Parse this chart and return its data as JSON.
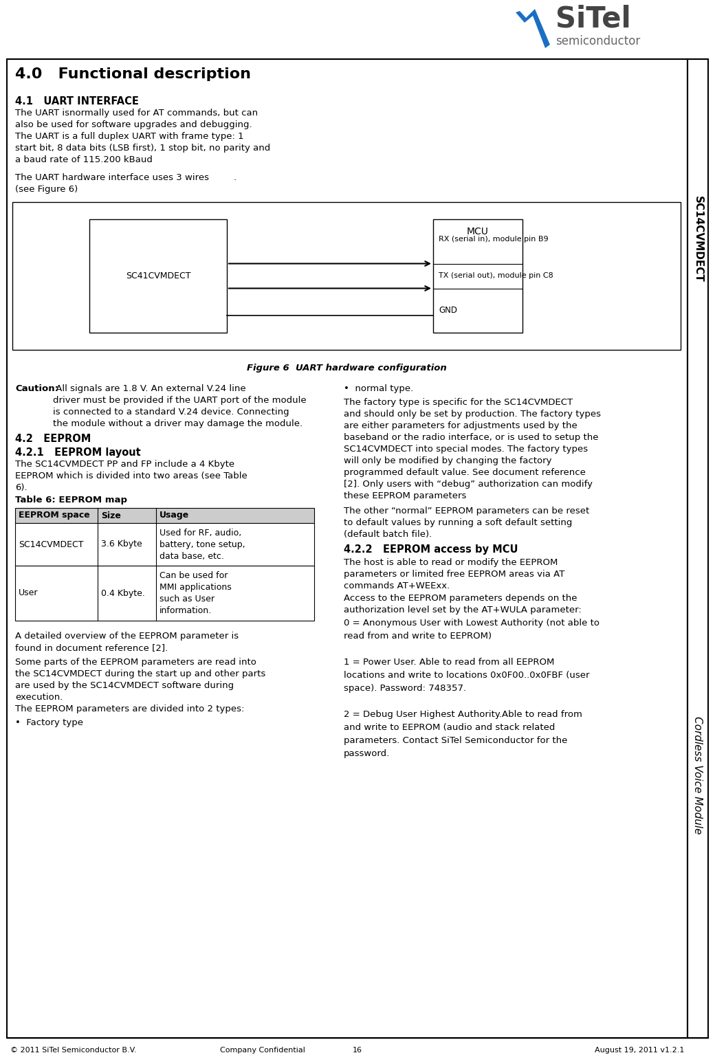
{
  "page_bg": "#ffffff",
  "title_main": "4.0   Functional description",
  "section_41_title": "4.1   UART INTERFACE",
  "section_41_text1": "The UART isnormally used for AT commands, but can\nalso be used for software upgrades and debugging.\nThe UART is a full duplex UART with frame type: 1\nstart bit, 8 data bits (LSB first), 1 stop bit, no parity and\na baud rate of 115.200 kBaud",
  "section_41_text2": "The UART hardware interface uses 3 wires\n(see Figure 6)",
  "figure6_caption": "Figure 6  UART hardware configuration",
  "caution_bold": "Caution:",
  "caution_rest": " All signals are 1.8 V. An external V.24 line\ndriver must be provided if the UART port of the module\nis connected to a standard V.24 device. Connecting\nthe module without a driver may damage the module.",
  "section_42_title": "4.2   EEPROM",
  "section_421_title": "4.2.1   EEPROM layout",
  "section_421_text1": "The SC14CVMDECT PP and FP include a 4 Kbyte\nEEPROM which is divided into two areas (see Table\n6).",
  "table6_title": "Table 6: EEPROM map",
  "table6_headers": [
    "EEPROM space",
    "Size",
    "Usage"
  ],
  "table6_row1_col0": "SC14CVMDECT",
  "table6_row1_col1": "3.6 Kbyte",
  "table6_row1_col2": "Used for RF, audio,\nbattery, tone setup,\ndata base, etc.",
  "table6_row2_col0": "User",
  "table6_row2_col1": "0.4 Kbyte.",
  "table6_row2_col2": "Can be used for\nMMI applications\nsuch as User\ninformation.",
  "section_421_text2": "A detailed overview of the EEPROM parameter is\nfound in document reference [2].",
  "section_421_text3": "Some parts of the EEPROM parameters are read into\nthe SC14CVMDECT during the start up and other parts\nare used by the SC14CVMDECT software during\nexecution.",
  "section_421_text4": "The EEPROM parameters are divided into 2 types:",
  "bullet1": "•  Factory type",
  "right_col_bullet": "•  normal type.",
  "right_col_text2": "The factory type is specific for the SC14CVMDECT\nand should only be set by production. The factory types\nare either parameters for adjustments used by the\nbaseband or the radio interface, or is used to setup the\nSC14CVMDECT into special modes. The factory types\nwill only be modified by changing the factory\nprogrammed default value. See document reference\n[2]. Only users with “debug” authorization can modify\nthese EEPROM parameters",
  "right_col_text3": "The other “normal” EEPROM parameters can be reset\nto default values by running a soft default setting\n(default batch file).",
  "section_422_title": "4.2.2   EEPROM access by MCU",
  "section_422_text1": "The host is able to read or modify the EEPROM\nparameters or limited free EEPROM areas via AT\ncommands AT+WEExx.",
  "section_422_text2": "Access to the EEPROM parameters depends on the\nauthorization level set by the AT+WULA parameter:",
  "section_422_text3": "0 = Anonymous User with Lowest Authority (not able to\nread from and write to EEPROM)\n\n1 = Power User. Able to read from all EEPROM\nlocations and write to locations 0x0F00..0x0FBF (user\nspace). Password: 748357.\n\n2 = Debug User Highest Authority.Able to read from\nand write to EEPROM (audio and stack related\nparameters. Contact SiTel Semiconductor for the\npassword.",
  "sidebar_text1": "SC14CVMDECT",
  "sidebar_text2": "Cordless Voice Module",
  "footer_left": "© 2011 SiTel Semiconductor B.V.",
  "footer_center_left": "Company Confidential",
  "footer_center": "16",
  "footer_right": "August 19, 2011 v1.2.1",
  "uart_box_label": "SC41CVMDECT",
  "mcu_label": "MCU",
  "rx_label": "RX (serial in), module pin B9",
  "tx_label": "TX (serial out), module pin C8",
  "gnd_label": "GND",
  "logo_sitel": "SiTel",
  "logo_semi": "semiconductor"
}
